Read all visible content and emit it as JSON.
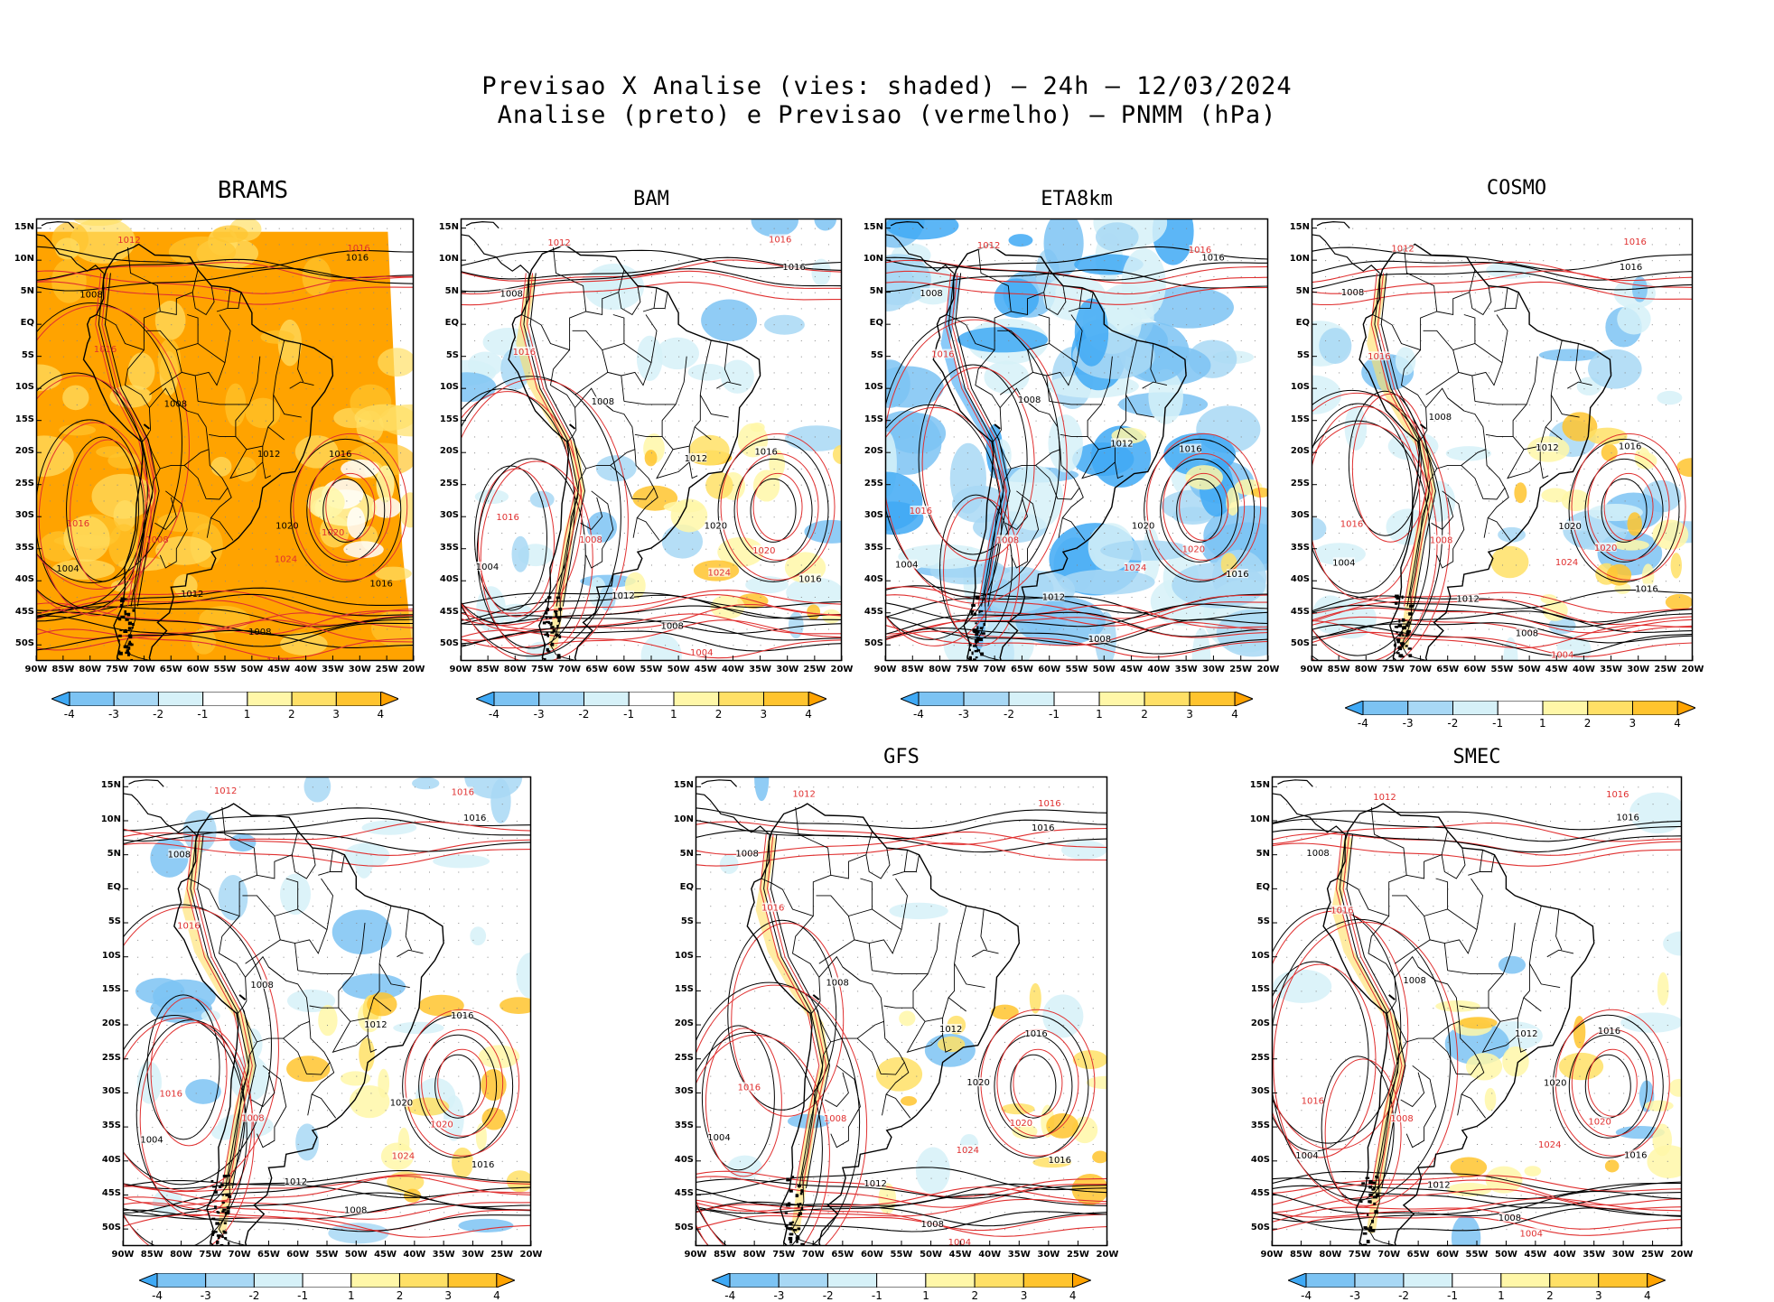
{
  "header": {
    "line1": "Previsao X Analise (vies: shaded) – 24h – 12/03/2024",
    "line2": "Analise (preto) e Previsao (vermelho) – PNMM (hPa)"
  },
  "panels": [
    {
      "title": "BRAMS",
      "style": "orange"
    },
    {
      "title": "BAM",
      "style": "mixed"
    },
    {
      "title": "ETA8km",
      "style": "blue"
    },
    {
      "title": "COSMO",
      "style": "mixed"
    },
    {
      "title": "",
      "style": "mixed"
    },
    {
      "title": "GFS",
      "style": "light"
    },
    {
      "title": "SMEC",
      "style": "light"
    }
  ],
  "axes": {
    "lat_labels": [
      "15N",
      "10N",
      "5N",
      "EQ",
      "5S",
      "10S",
      "15S",
      "20S",
      "25S",
      "30S",
      "35S",
      "40S",
      "45S",
      "50S"
    ],
    "lon_labels": [
      "90W",
      "85W",
      "80W",
      "75W",
      "70W",
      "65W",
      "60W",
      "55W",
      "50W",
      "45W",
      "40W",
      "35W",
      "30W",
      "25W",
      "20W"
    ]
  },
  "colorbar": {
    "labels": [
      "-4",
      "-3",
      "-2",
      "-1",
      "1",
      "2",
      "3",
      "4"
    ],
    "colors": [
      "#3fa9f5",
      "#7cc3f3",
      "#a8d8f5",
      "#d6f1f8",
      "#ffffff",
      "#fff7a8",
      "#ffe066",
      "#ffc42e",
      "#ffa300"
    ]
  },
  "contour_labels": {
    "analysis_color": "#000000",
    "forecast_color": "#e03030",
    "values": [
      "1004",
      "1008",
      "1012",
      "1016",
      "1020",
      "1024"
    ]
  }
}
